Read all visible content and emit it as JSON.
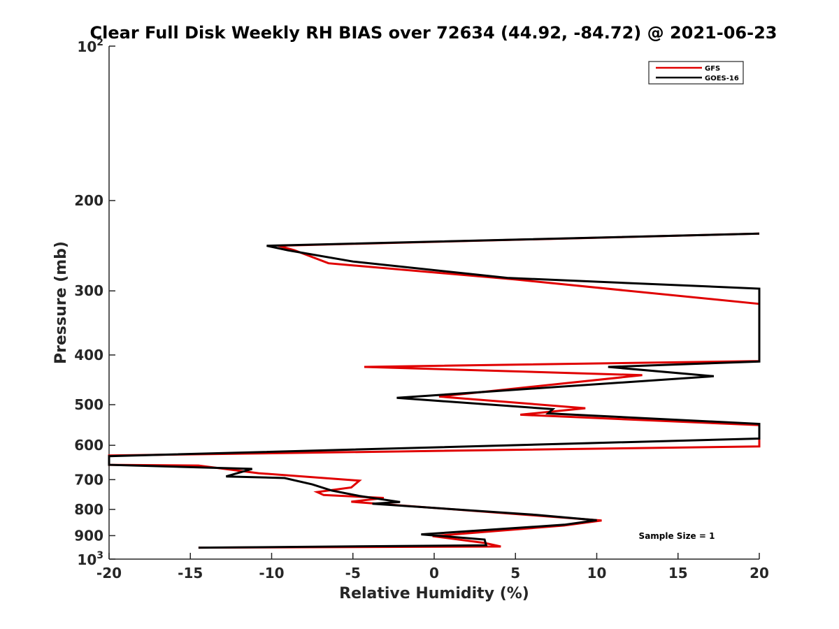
{
  "chart_data": {
    "type": "line",
    "title": "Clear Full Disk Weekly RH BIAS over 72634 (44.92, -84.72) @ 2021-06-23",
    "xlabel": "Relative Humidity (%)",
    "ylabel": "Pressure (mb)",
    "xlim": [
      -20,
      20
    ],
    "ylim": [
      100,
      1000
    ],
    "yscale": "log",
    "y_reversed": true,
    "x_ticks": [
      -20,
      -15,
      -10,
      -5,
      0,
      5,
      10,
      15,
      20
    ],
    "x_tick_labels": [
      "-20",
      "-15",
      "-10",
      "-5",
      "0",
      "5",
      "10",
      "15",
      "20"
    ],
    "y_ticks": [
      200,
      300,
      400,
      500,
      600,
      700,
      800,
      900
    ],
    "y_tick_labels": [
      "200",
      "300",
      "400",
      "500",
      "600",
      "700",
      "800",
      "900"
    ],
    "y_limit_labels": [
      {
        "value": 100,
        "base": "10",
        "exp": "2"
      },
      {
        "value": 1000,
        "base": "10",
        "exp": "3"
      }
    ],
    "legend": {
      "position": "top-right"
    },
    "annotation": "Sample Size = 1",
    "series": [
      {
        "name": "GFS",
        "color": "#e00000",
        "x": [
          20,
          -9.6,
          -8.6,
          -6.5,
          5.0,
          20,
          20,
          -4.3,
          12.8,
          0.3,
          9.3,
          5.3,
          20,
          20,
          -20,
          -20,
          -14.5,
          -10.8,
          -4.6,
          -5.1,
          -7.2,
          -6.8,
          -3.1,
          -5.1,
          6.2,
          10.3,
          8.0,
          -0.1,
          3.1,
          4.1,
          -14.5
        ],
        "y": [
          232,
          245,
          250,
          265,
          285,
          318,
          411,
          422,
          438,
          482,
          508,
          523,
          548,
          603,
          628,
          655,
          657,
          680,
          703,
          725,
          740,
          750,
          760,
          773,
          822,
          841,
          860,
          902,
          930,
          945,
          950
        ]
      },
      {
        "name": "GOES-16",
        "color": "#000000",
        "x": [
          20,
          -10.3,
          -9.0,
          -5.0,
          4.5,
          20,
          20,
          10.7,
          17.2,
          -2.3,
          7.3,
          7.0,
          20,
          20,
          -20,
          -20,
          -11.2,
          -12.8,
          -9.2,
          -7.5,
          -6.3,
          -4.6,
          -2.1,
          -3.8,
          6.3,
          10.0,
          8.0,
          -0.8,
          3.1,
          3.2,
          -14.5
        ],
        "y": [
          232,
          245,
          250,
          263,
          283,
          297,
          412,
          422,
          440,
          485,
          510,
          520,
          545,
          582,
          630,
          655,
          667,
          690,
          695,
          715,
          735,
          753,
          774,
          780,
          820,
          840,
          857,
          895,
          916,
          940,
          950
        ]
      }
    ]
  }
}
